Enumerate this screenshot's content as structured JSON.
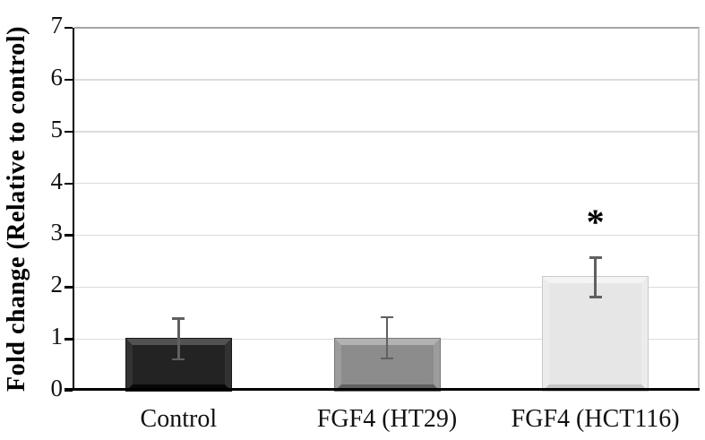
{
  "chart_data": {
    "type": "bar",
    "title": "",
    "xlabel": "",
    "ylabel": "Fold change (Relative to control)",
    "categories": [
      "Control",
      "FGF4 (HT29)",
      "FGF4 (HCT116)"
    ],
    "values": [
      1.0,
      1.0,
      2.2
    ],
    "error_bars": [
      {
        "lower": 0.6,
        "upper": 1.4
      },
      {
        "lower": 0.62,
        "upper": 1.42
      },
      {
        "lower": 1.8,
        "upper": 2.57
      }
    ],
    "annotations": [
      {
        "text": "*",
        "category_index": 2,
        "y_value": 3.4
      }
    ],
    "ylim": [
      0,
      7
    ],
    "yticks": [
      0,
      1,
      2,
      3,
      4,
      5,
      6,
      7
    ],
    "grid": true,
    "legend": null,
    "bar_colors": [
      {
        "face": "#232323",
        "bevel_top": "#525252",
        "bevel_side": "#323232",
        "bevel_bottom": "#080808",
        "outline": "#1a1a1a"
      },
      {
        "face": "#8c8c8c",
        "bevel_top": "#b2b2b2",
        "bevel_side": "#9c9c9c",
        "bevel_bottom": "#616161",
        "outline": "#787878"
      },
      {
        "face": "#e6e6e6",
        "bevel_top": "#f4f4f4",
        "bevel_side": "#ececec",
        "bevel_bottom": "#c6c6c6",
        "outline": "#c9c9c9"
      }
    ],
    "style_colors": {
      "gridline": "#dcdcdc",
      "top_gridline": "#a6a6a6",
      "right_border": "#c9c9c9",
      "axis": "#000000",
      "error_bar": "#606060",
      "label_text": "#111111"
    }
  }
}
